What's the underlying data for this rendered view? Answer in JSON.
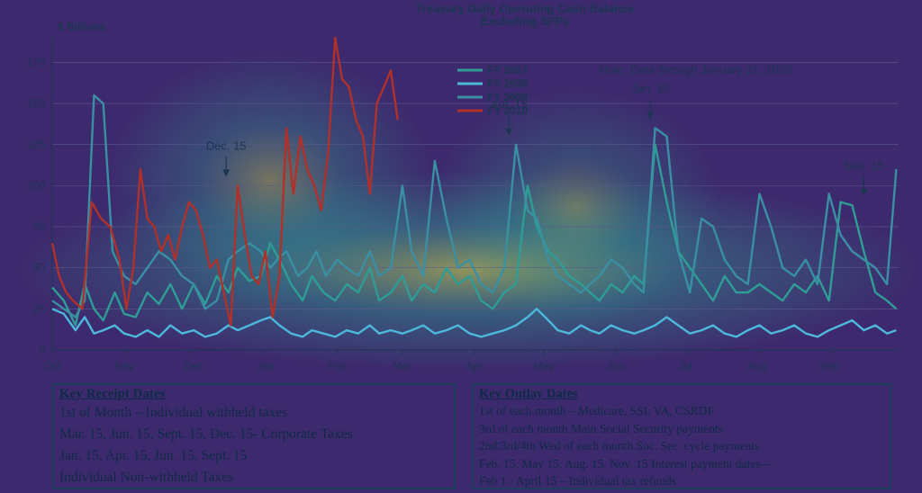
{
  "chart_data": {
    "type": "line",
    "title": "Treasury Daily Operating Cash Balance",
    "subtitle": "Excluding SFPs",
    "ylabel": "$ Billions",
    "ylim": [
      0,
      190
    ],
    "yticks": [
      0,
      25,
      50,
      75,
      100,
      125,
      150,
      175
    ],
    "xlim": [
      0,
      365
    ],
    "x_ticks": [
      {
        "label": "Oct",
        "day": 0
      },
      {
        "label": "Nov",
        "day": 31
      },
      {
        "label": "Dec",
        "day": 61
      },
      {
        "label": "Jan",
        "day": 92
      },
      {
        "label": "Feb",
        "day": 123
      },
      {
        "label": "Mar",
        "day": 151
      },
      {
        "label": "Apr",
        "day": 182
      },
      {
        "label": "May",
        "day": 212
      },
      {
        "label": "Jun",
        "day": 243
      },
      {
        "label": "Jul",
        "day": 273
      },
      {
        "label": "Aug",
        "day": 304
      },
      {
        "label": "Sep",
        "day": 335
      }
    ],
    "legend_position": "top-center",
    "note": "Note: Data through January 21, 2009",
    "series": [
      {
        "name": "FY 2007",
        "color": "#2f9c96",
        "points": [
          [
            0,
            38
          ],
          [
            5,
            30
          ],
          [
            10,
            15
          ],
          [
            14,
            40
          ],
          [
            18,
            25
          ],
          [
            22,
            18
          ],
          [
            27,
            35
          ],
          [
            31,
            22
          ],
          [
            36,
            20
          ],
          [
            41,
            35
          ],
          [
            46,
            28
          ],
          [
            51,
            40
          ],
          [
            56,
            25
          ],
          [
            61,
            40
          ],
          [
            66,
            28
          ],
          [
            71,
            45
          ],
          [
            76,
            35
          ],
          [
            80,
            50
          ],
          [
            85,
            42
          ],
          [
            90,
            45
          ],
          [
            94,
            65
          ],
          [
            98,
            55
          ],
          [
            103,
            40
          ],
          [
            108,
            30
          ],
          [
            112,
            45
          ],
          [
            117,
            35
          ],
          [
            122,
            30
          ],
          [
            127,
            40
          ],
          [
            132,
            35
          ],
          [
            137,
            50
          ],
          [
            141,
            30
          ],
          [
            146,
            35
          ],
          [
            151,
            45
          ],
          [
            155,
            30
          ],
          [
            160,
            40
          ],
          [
            165,
            35
          ],
          [
            170,
            50
          ],
          [
            175,
            40
          ],
          [
            180,
            45
          ],
          [
            185,
            30
          ],
          [
            190,
            25
          ],
          [
            195,
            35
          ],
          [
            200,
            40
          ],
          [
            205,
            100
          ],
          [
            209,
            75
          ],
          [
            214,
            60
          ],
          [
            218,
            55
          ],
          [
            223,
            45
          ],
          [
            228,
            40
          ],
          [
            232,
            35
          ],
          [
            236,
            30
          ],
          [
            241,
            40
          ],
          [
            246,
            35
          ],
          [
            251,
            45
          ],
          [
            255,
            40
          ],
          [
            260,
            125
          ],
          [
            265,
            90
          ],
          [
            270,
            60
          ],
          [
            275,
            50
          ],
          [
            280,
            40
          ],
          [
            285,
            30
          ],
          [
            290,
            45
          ],
          [
            295,
            35
          ],
          [
            300,
            35
          ],
          [
            305,
            40
          ],
          [
            310,
            35
          ],
          [
            315,
            30
          ],
          [
            320,
            40
          ],
          [
            325,
            35
          ],
          [
            330,
            45
          ],
          [
            335,
            30
          ],
          [
            340,
            90
          ],
          [
            345,
            88
          ],
          [
            350,
            60
          ],
          [
            355,
            35
          ],
          [
            360,
            30
          ],
          [
            364,
            25
          ]
        ]
      },
      {
        "name": "FY 2008",
        "color": "#4eb8dc",
        "points": [
          [
            0,
            25
          ],
          [
            5,
            22
          ],
          [
            10,
            12
          ],
          [
            14,
            20
          ],
          [
            18,
            10
          ],
          [
            22,
            12
          ],
          [
            27,
            15
          ],
          [
            31,
            10
          ],
          [
            36,
            8
          ],
          [
            41,
            12
          ],
          [
            46,
            8
          ],
          [
            51,
            15
          ],
          [
            56,
            10
          ],
          [
            61,
            12
          ],
          [
            66,
            8
          ],
          [
            71,
            10
          ],
          [
            76,
            15
          ],
          [
            80,
            12
          ],
          [
            85,
            15
          ],
          [
            90,
            18
          ],
          [
            94,
            20
          ],
          [
            98,
            15
          ],
          [
            103,
            10
          ],
          [
            108,
            8
          ],
          [
            112,
            12
          ],
          [
            117,
            10
          ],
          [
            122,
            8
          ],
          [
            127,
            12
          ],
          [
            132,
            10
          ],
          [
            137,
            15
          ],
          [
            141,
            10
          ],
          [
            146,
            12
          ],
          [
            151,
            10
          ],
          [
            155,
            12
          ],
          [
            160,
            15
          ],
          [
            165,
            10
          ],
          [
            170,
            12
          ],
          [
            175,
            15
          ],
          [
            180,
            10
          ],
          [
            185,
            8
          ],
          [
            190,
            10
          ],
          [
            195,
            12
          ],
          [
            200,
            15
          ],
          [
            205,
            20
          ],
          [
            209,
            25
          ],
          [
            214,
            18
          ],
          [
            218,
            12
          ],
          [
            223,
            10
          ],
          [
            228,
            15
          ],
          [
            232,
            12
          ],
          [
            236,
            10
          ],
          [
            241,
            15
          ],
          [
            246,
            12
          ],
          [
            251,
            10
          ],
          [
            255,
            12
          ],
          [
            260,
            15
          ],
          [
            265,
            20
          ],
          [
            270,
            15
          ],
          [
            275,
            10
          ],
          [
            280,
            12
          ],
          [
            285,
            15
          ],
          [
            290,
            10
          ],
          [
            295,
            8
          ],
          [
            300,
            12
          ],
          [
            305,
            15
          ],
          [
            310,
            10
          ],
          [
            315,
            12
          ],
          [
            320,
            15
          ],
          [
            325,
            10
          ],
          [
            330,
            8
          ],
          [
            335,
            12
          ],
          [
            340,
            15
          ],
          [
            345,
            18
          ],
          [
            350,
            12
          ],
          [
            355,
            15
          ],
          [
            360,
            10
          ],
          [
            364,
            12
          ]
        ]
      },
      {
        "name": "FY 2009",
        "color": "#3a8fa3",
        "points": [
          [
            0,
            30
          ],
          [
            5,
            25
          ],
          [
            10,
            20
          ],
          [
            14,
            30
          ],
          [
            18,
            155
          ],
          [
            22,
            150
          ],
          [
            26,
            60
          ],
          [
            31,
            45
          ],
          [
            36,
            40
          ],
          [
            41,
            50
          ],
          [
            46,
            60
          ],
          [
            51,
            55
          ],
          [
            56,
            45
          ],
          [
            61,
            40
          ],
          [
            66,
            25
          ],
          [
            71,
            30
          ],
          [
            76,
            55
          ],
          [
            80,
            60
          ],
          [
            85,
            65
          ],
          [
            90,
            60
          ],
          [
            94,
            50
          ],
          [
            97,
            55
          ],
          [
            101,
            60
          ],
          [
            106,
            45
          ],
          [
            110,
            50
          ],
          [
            114,
            60
          ],
          [
            118,
            45
          ],
          [
            123,
            55
          ],
          [
            127,
            50
          ],
          [
            132,
            45
          ],
          [
            137,
            60
          ],
          [
            141,
            45
          ],
          [
            146,
            50
          ],
          [
            151,
            100
          ],
          [
            155,
            60
          ],
          [
            160,
            45
          ],
          [
            165,
            115
          ],
          [
            170,
            80
          ],
          [
            175,
            50
          ],
          [
            180,
            55
          ],
          [
            185,
            40
          ],
          [
            190,
            35
          ],
          [
            195,
            50
          ],
          [
            200,
            125
          ],
          [
            205,
            85
          ],
          [
            209,
            80
          ],
          [
            214,
            55
          ],
          [
            218,
            45
          ],
          [
            223,
            40
          ],
          [
            228,
            35
          ],
          [
            232,
            40
          ],
          [
            236,
            45
          ],
          [
            241,
            55
          ],
          [
            246,
            50
          ],
          [
            251,
            40
          ],
          [
            255,
            35
          ],
          [
            260,
            135
          ],
          [
            265,
            130
          ],
          [
            270,
            60
          ],
          [
            275,
            35
          ],
          [
            280,
            80
          ],
          [
            285,
            75
          ],
          [
            290,
            55
          ],
          [
            295,
            45
          ],
          [
            300,
            40
          ],
          [
            305,
            95
          ],
          [
            310,
            75
          ],
          [
            315,
            50
          ],
          [
            320,
            45
          ],
          [
            325,
            55
          ],
          [
            330,
            40
          ],
          [
            335,
            95
          ],
          [
            340,
            70
          ],
          [
            345,
            60
          ],
          [
            350,
            55
          ],
          [
            355,
            50
          ],
          [
            360,
            40
          ],
          [
            364,
            110
          ]
        ]
      },
      {
        "name": "FY 2010",
        "color": "#b0302a",
        "points": [
          [
            0,
            65
          ],
          [
            3,
            45
          ],
          [
            6,
            35
          ],
          [
            9,
            30
          ],
          [
            13,
            25
          ],
          [
            17,
            90
          ],
          [
            21,
            80
          ],
          [
            25,
            75
          ],
          [
            29,
            55
          ],
          [
            32,
            25
          ],
          [
            35,
            50
          ],
          [
            38,
            110
          ],
          [
            41,
            80
          ],
          [
            44,
            75
          ],
          [
            47,
            60
          ],
          [
            50,
            70
          ],
          [
            53,
            55
          ],
          [
            56,
            75
          ],
          [
            59,
            90
          ],
          [
            62,
            85
          ],
          [
            65,
            70
          ],
          [
            68,
            50
          ],
          [
            71,
            55
          ],
          [
            74,
            35
          ],
          [
            77,
            15
          ],
          [
            80,
            100
          ],
          [
            83,
            70
          ],
          [
            86,
            45
          ],
          [
            89,
            40
          ],
          [
            92,
            60
          ],
          [
            95,
            20
          ],
          [
            98,
            45
          ],
          [
            101,
            135
          ],
          [
            104,
            95
          ],
          [
            107,
            130
          ],
          [
            110,
            110
          ],
          [
            113,
            100
          ],
          [
            116,
            85
          ],
          [
            119,
            120
          ],
          [
            122,
            190
          ],
          [
            125,
            165
          ],
          [
            128,
            160
          ],
          [
            131,
            140
          ],
          [
            134,
            130
          ],
          [
            137,
            95
          ],
          [
            140,
            150
          ],
          [
            143,
            160
          ],
          [
            146,
            170
          ],
          [
            149,
            140
          ]
        ]
      }
    ],
    "annotations": [
      {
        "text": "Dec. 15",
        "day": 75
      },
      {
        "text": "Apr. 15",
        "day": 197
      },
      {
        "text": "Jun. 15",
        "day": 258
      },
      {
        "text": "Sep. 15",
        "day": 350
      }
    ]
  },
  "key_receipt": {
    "heading": "Key Receipt Dates",
    "lines": [
      "1st of Month – Individual withheld taxes",
      "Mar. 15, Jun. 15, Sept. 15, Dec. 15- Corporate Taxes",
      "Jan. 15, Apr. 15, Jun. 15, Sept. 15",
      "Individual Non-withheld Taxes"
    ]
  },
  "key_outlay": {
    "heading": "Key Outlay Dates",
    "lines": [
      "1st of each month – Medicare, SSI, VA, CSRDF",
      "3rd of each month Main Social Security payments",
      "2nd/3rd/4th Wed of each month Soc. Sec. cycle payments",
      "Feb. 15, May 15, Aug. 15, Nov. 15 Interest payment dates—",
      "Feb 1 - April 15 – Individual tax refunds"
    ]
  }
}
